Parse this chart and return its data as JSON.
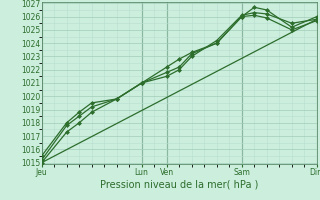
{
  "xlabel": "Pression niveau de la mer( hPa )",
  "bg_color": "#cceedd",
  "grid_color_minor": "#b8ddd0",
  "grid_color_major": "#a0ccb8",
  "line_color": "#2d6e2d",
  "vline_color": "#5a8a6a",
  "ylim": [
    1015,
    1027
  ],
  "yticks": [
    1015,
    1016,
    1017,
    1018,
    1019,
    1020,
    1021,
    1022,
    1023,
    1024,
    1025,
    1026,
    1027
  ],
  "day_labels": [
    "Jeu",
    "Lun",
    "Ven",
    "Sam",
    "Dim"
  ],
  "day_positions": [
    0,
    8,
    10,
    16,
    22
  ],
  "xlim": [
    0,
    22
  ],
  "series1_x": [
    0,
    2,
    3,
    4,
    6,
    8,
    10,
    11,
    12,
    14,
    16,
    17,
    18,
    20,
    22
  ],
  "series1_y": [
    1015.0,
    1017.3,
    1018.0,
    1018.8,
    1019.8,
    1021.0,
    1022.2,
    1022.8,
    1023.3,
    1024.0,
    1026.0,
    1026.7,
    1026.5,
    1025.2,
    1026.0
  ],
  "series2_x": [
    0,
    2,
    3,
    4,
    6,
    8,
    10,
    11,
    12,
    14,
    16,
    17,
    18,
    20,
    22
  ],
  "series2_y": [
    1015.2,
    1017.8,
    1018.5,
    1019.2,
    1019.8,
    1021.0,
    1021.5,
    1022.0,
    1023.0,
    1024.2,
    1026.1,
    1026.3,
    1026.2,
    1025.5,
    1025.8
  ],
  "series3_x": [
    0,
    2,
    3,
    4,
    6,
    8,
    10,
    11,
    12,
    14,
    16,
    17,
    18,
    20,
    22
  ],
  "series3_y": [
    1015.5,
    1018.0,
    1018.8,
    1019.5,
    1019.8,
    1021.0,
    1021.8,
    1022.2,
    1023.2,
    1024.0,
    1026.0,
    1026.1,
    1025.9,
    1025.0,
    1025.7
  ],
  "series4_x": [
    0,
    22
  ],
  "series4_y": [
    1015.0,
    1025.8
  ],
  "label_fontsize": 5.5,
  "xlabel_fontsize": 7.0
}
